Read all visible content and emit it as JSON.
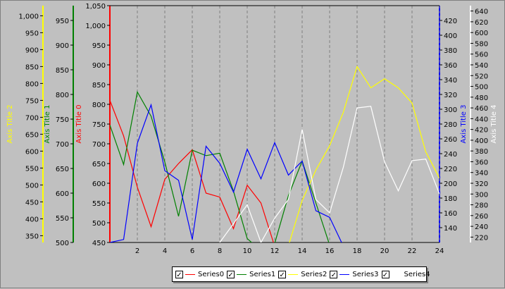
{
  "chart_data": {
    "type": "line",
    "x_axis": {
      "ticks": [
        2,
        4,
        6,
        8,
        10,
        12,
        14,
        16,
        18,
        20,
        22,
        24
      ],
      "range": [
        0,
        24
      ],
      "grid": "vertical-dashed"
    },
    "y_axes": [
      {
        "id": "axis0",
        "title": "Axis Title 0",
        "color": "#ff0000",
        "range": [
          450,
          1050
        ],
        "ticks": [
          450,
          500,
          550,
          600,
          650,
          700,
          750,
          800,
          850,
          900,
          950,
          "1,000",
          "1,050"
        ]
      },
      {
        "id": "axis1",
        "title": "Axis Title 1",
        "color": "#008000",
        "range": [
          500,
          980
        ],
        "ticks": [
          500,
          550,
          600,
          650,
          700,
          750,
          800,
          850,
          900,
          950
        ]
      },
      {
        "id": "axis2",
        "title": "Axis Title 2",
        "color": "#ffff00",
        "range": [
          330,
          1030
        ],
        "ticks": [
          350,
          400,
          450,
          500,
          550,
          600,
          650,
          700,
          750,
          800,
          850,
          900,
          950,
          "1,000"
        ]
      },
      {
        "id": "axis3",
        "title": "Axis Title 3",
        "color": "#0000ff",
        "range": [
          120,
          440
        ],
        "ticks": [
          140,
          160,
          180,
          200,
          220,
          240,
          260,
          280,
          300,
          320,
          340,
          360,
          380,
          400,
          420
        ]
      },
      {
        "id": "axis4",
        "title": "Axis Title 4",
        "color": "#ffffff",
        "range": [
          210,
          650
        ],
        "ticks": [
          220,
          240,
          260,
          280,
          300,
          320,
          340,
          360,
          380,
          400,
          420,
          440,
          460,
          480,
          500,
          520,
          540,
          560,
          580,
          600,
          620,
          640
        ]
      }
    ],
    "series": [
      {
        "name": "Series0",
        "color": "#ff0000",
        "axis": "axis0",
        "x": [
          0,
          1,
          2,
          3,
          4,
          5,
          6,
          7,
          8,
          9,
          10,
          11,
          12
        ],
        "y": [
          810,
          720,
          590,
          490,
          610,
          650,
          685,
          575,
          565,
          485,
          595,
          550,
          440
        ]
      },
      {
        "name": "Series1",
        "color": "#008000",
        "axis": "axis1",
        "x": [
          0,
          1,
          2,
          3,
          4,
          5,
          6,
          7,
          8,
          9,
          10,
          11,
          12,
          13,
          14,
          15,
          16
        ],
        "y": [
          738,
          658,
          805,
          756,
          663,
          553,
          687,
          676,
          681,
          604,
          508,
          483,
          498,
          595,
          665,
          580,
          495
        ]
      },
      {
        "name": "Series2",
        "color": "#ffff00",
        "axis": "axis2",
        "x": [
          13,
          14,
          15,
          16,
          17,
          18,
          19,
          20,
          21,
          22,
          23,
          24
        ],
        "y": [
          320,
          454,
          544,
          616,
          715,
          850,
          787,
          814,
          787,
          742,
          598,
          520
        ]
      },
      {
        "name": "Series3",
        "color": "#0000ff",
        "axis": "axis3",
        "x": [
          0,
          1,
          2,
          3,
          4,
          5,
          6,
          7,
          8,
          9,
          10,
          11,
          12,
          13,
          14,
          15,
          16,
          17
        ],
        "y": [
          120,
          124,
          254,
          306,
          217,
          204,
          124,
          250,
          227,
          188,
          246,
          206,
          255,
          211,
          230,
          163,
          154,
          115
        ]
      },
      {
        "name": "Series4",
        "color": "#ffffff",
        "axis": "axis4",
        "x": [
          8,
          9,
          10,
          11,
          12,
          13,
          14,
          15,
          16,
          17,
          18,
          19,
          20,
          21,
          22,
          23,
          24
        ],
        "y": [
          210,
          245,
          280,
          210,
          255,
          290,
          420,
          290,
          265,
          350,
          460,
          463,
          360,
          306,
          362,
          365,
          300
        ]
      }
    ],
    "legend": {
      "position": "bottom",
      "items": [
        "Series0",
        "Series1",
        "Series2",
        "Series3",
        "Series4"
      ],
      "checked": true
    },
    "background": "#c0c0c0"
  }
}
